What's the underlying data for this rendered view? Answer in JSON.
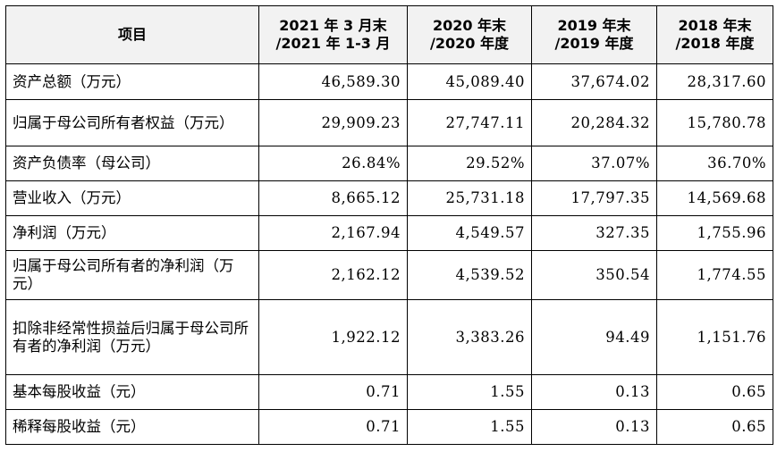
{
  "table": {
    "headers": [
      "项目",
      "2021年3月末\n/2021年1-3月",
      "2020年末\n/2020年度",
      "2019年末\n/2019年度",
      "2018年末\n/2018年度"
    ],
    "header_lines": [
      [
        "项目"
      ],
      [
        "2021 年 3 月末",
        "/2021 年 1-3 月"
      ],
      [
        "2020 年末",
        "/2020 年度"
      ],
      [
        "2019 年末",
        "/2019 年度"
      ],
      [
        "2018 年末",
        "/2018 年度"
      ]
    ],
    "rows": [
      {
        "label": "资产总额（万元）",
        "values": [
          "46,589.30",
          "45,089.40",
          "37,674.02",
          "28,317.60"
        ]
      },
      {
        "label": "归属于母公司所有者权益（万元）",
        "values": [
          "29,909.23",
          "27,747.11",
          "20,284.32",
          "15,780.78"
        ]
      },
      {
        "label": "资产负债率（母公司）",
        "values": [
          "26.84%",
          "29.52%",
          "37.07%",
          "36.70%"
        ]
      },
      {
        "label": "营业收入（万元）",
        "values": [
          "8,665.12",
          "25,731.18",
          "17,797.35",
          "14,569.68"
        ]
      },
      {
        "label": "净利润（万元）",
        "values": [
          "2,167.94",
          "4,549.57",
          "327.35",
          "1,755.96"
        ]
      },
      {
        "label": "归属于母公司所有者的净利润（万元）",
        "values": [
          "2,162.12",
          "4,539.52",
          "350.54",
          "1,774.55"
        ]
      },
      {
        "label": "扣除非经常性损益后归属于母公司所有者的净利润（万元）",
        "values": [
          "1,922.12",
          "3,383.26",
          "94.49",
          "1,151.76"
        ]
      },
      {
        "label": "基本每股收益（元）",
        "values": [
          "0.71",
          "1.55",
          "0.13",
          "0.65"
        ]
      },
      {
        "label": "稀释每股收益（元）",
        "values": [
          "0.71",
          "1.55",
          "0.13",
          "0.65"
        ]
      }
    ]
  }
}
